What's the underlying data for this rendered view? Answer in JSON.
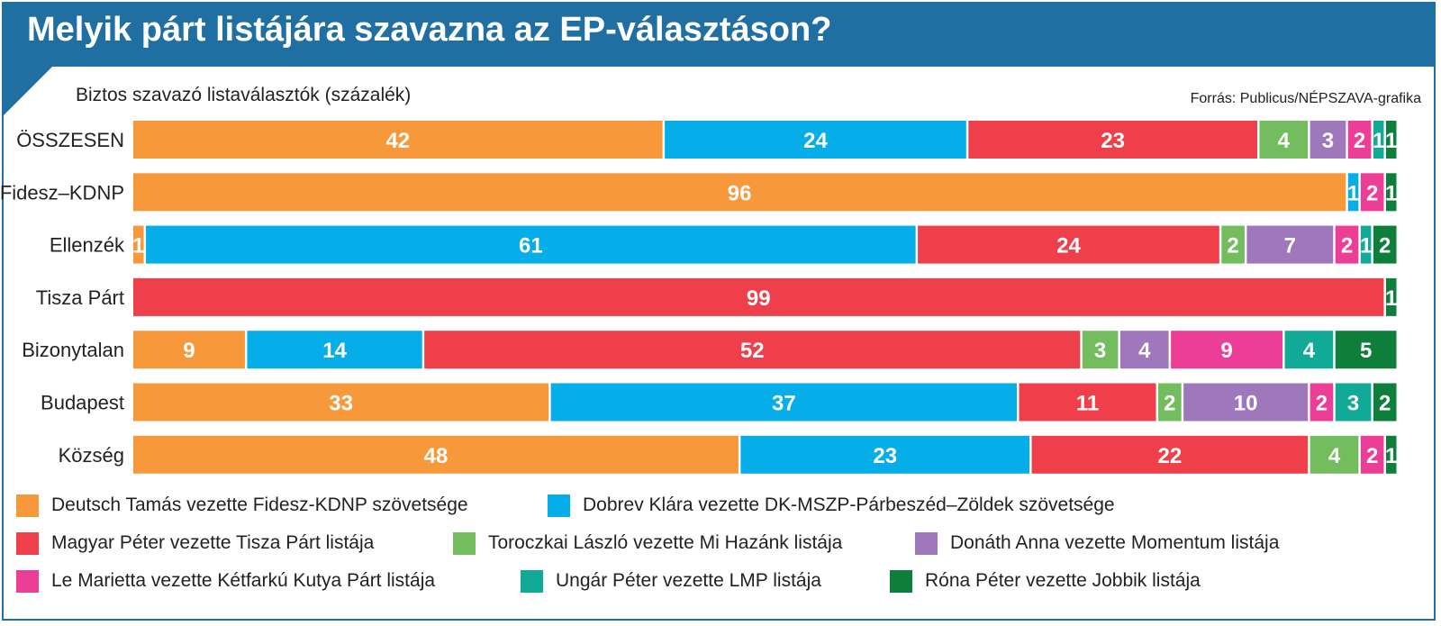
{
  "header": {
    "title": "Melyik párt listájára szavazna az EP-választáson?",
    "subtitle": "Biztos szavazó listaválasztók (százalék)",
    "source": "Forrás: Publicus/NÉPSZAVA-grafika",
    "accent_color": "#1f6fa3"
  },
  "chart_data": {
    "type": "bar",
    "orientation": "horizontal",
    "stacked": true,
    "categories": [
      "ÖSSZESEN",
      "Fidesz–KDNP",
      "Ellenzék",
      "Tisza Párt",
      "Bizonytalan",
      "Budapest",
      "Község"
    ],
    "series": [
      {
        "name": "Deutsch Tamás vezette Fidesz-KDNP szövetsége",
        "color": "#f7993b",
        "values": [
          42,
          96,
          1,
          0,
          9,
          33,
          48
        ]
      },
      {
        "name": "Dobrev Klára vezette DK-MSZP-Párbeszéd–Zöldek szövetsége",
        "color": "#05ade9",
        "values": [
          24,
          1,
          61,
          0,
          14,
          37,
          23
        ]
      },
      {
        "name": "Magyar Péter vezette Tisza Párt listája",
        "color": "#ee3f4b",
        "values": [
          23,
          0,
          24,
          99,
          52,
          11,
          22
        ]
      },
      {
        "name": "Toroczkai László vezette Mi Hazánk listája",
        "color": "#74bd5e",
        "values": [
          4,
          0,
          2,
          0,
          3,
          2,
          4
        ]
      },
      {
        "name": "Donáth Anna vezette Momentum listája",
        "color": "#9f78bc",
        "values": [
          3,
          0,
          7,
          0,
          4,
          10,
          0
        ]
      },
      {
        "name": "Le Marietta vezette Kétfarkú Kutya Párt listája",
        "color": "#ec3e97",
        "values": [
          2,
          2,
          2,
          0,
          9,
          2,
          2
        ]
      },
      {
        "name": "Ungár Péter vezette LMP listája",
        "color": "#10aa97",
        "values": [
          1,
          0,
          1,
          0,
          4,
          3,
          0
        ]
      },
      {
        "name": "Róna Péter vezette Jobbik listája",
        "color": "#0e7f3b",
        "values": [
          1,
          1,
          2,
          1,
          5,
          2,
          1
        ]
      }
    ]
  }
}
